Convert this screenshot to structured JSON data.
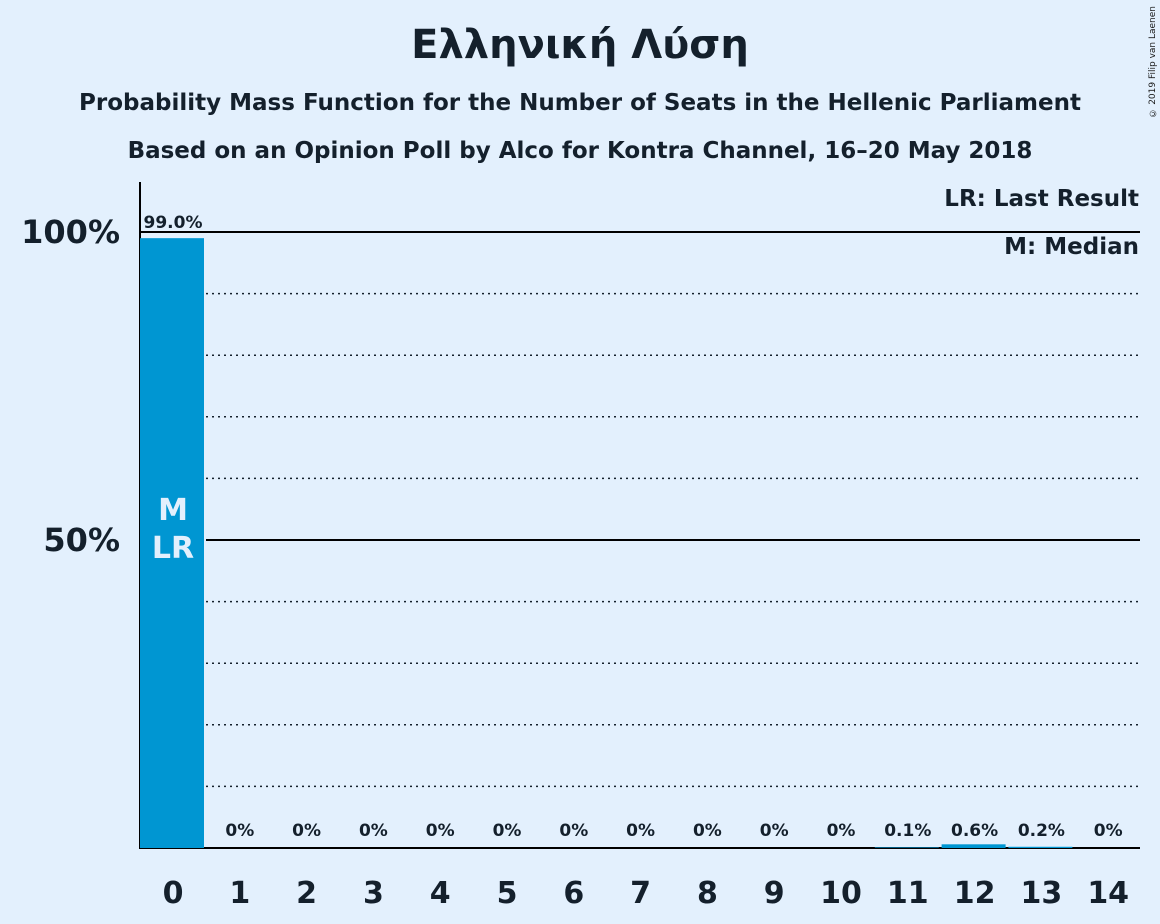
{
  "title": "Ελληνική Λύση",
  "subtitle": "Probability Mass Function for the Number of Seats in the Hellenic Parliament",
  "subtitle2": "Based on an Opinion Poll by Alco for Kontra Channel, 16–20 May 2018",
  "copyright": "© 2019 Filip van Laenen",
  "legend": {
    "last_result": "LR: Last Result",
    "median": "M: Median"
  },
  "colors": {
    "background": "#e3f0fd",
    "bar": "#0096d2",
    "text": "#14202c"
  },
  "chart_data": {
    "type": "bar",
    "categories": [
      "0",
      "1",
      "2",
      "3",
      "4",
      "5",
      "6",
      "7",
      "8",
      "9",
      "10",
      "11",
      "12",
      "13",
      "14"
    ],
    "values": [
      99.0,
      0,
      0,
      0,
      0,
      0,
      0,
      0,
      0,
      0,
      0,
      0.1,
      0.6,
      0.2,
      0
    ],
    "value_labels": [
      "99.0%",
      "0%",
      "0%",
      "0%",
      "0%",
      "0%",
      "0%",
      "0%",
      "0%",
      "0%",
      "0%",
      "0.1%",
      "0.6%",
      "0.2%",
      "0%"
    ],
    "y_ticks": [
      {
        "value": 50,
        "label": "50%"
      },
      {
        "value": 100,
        "label": "100%"
      }
    ],
    "ylim": [
      0,
      100
    ],
    "gridlines_dotted": [
      10,
      20,
      30,
      40,
      60,
      70,
      80,
      90
    ],
    "median_seat": "0",
    "last_result_seat": "0",
    "in_bar_labels": [
      "M",
      "LR"
    ]
  }
}
